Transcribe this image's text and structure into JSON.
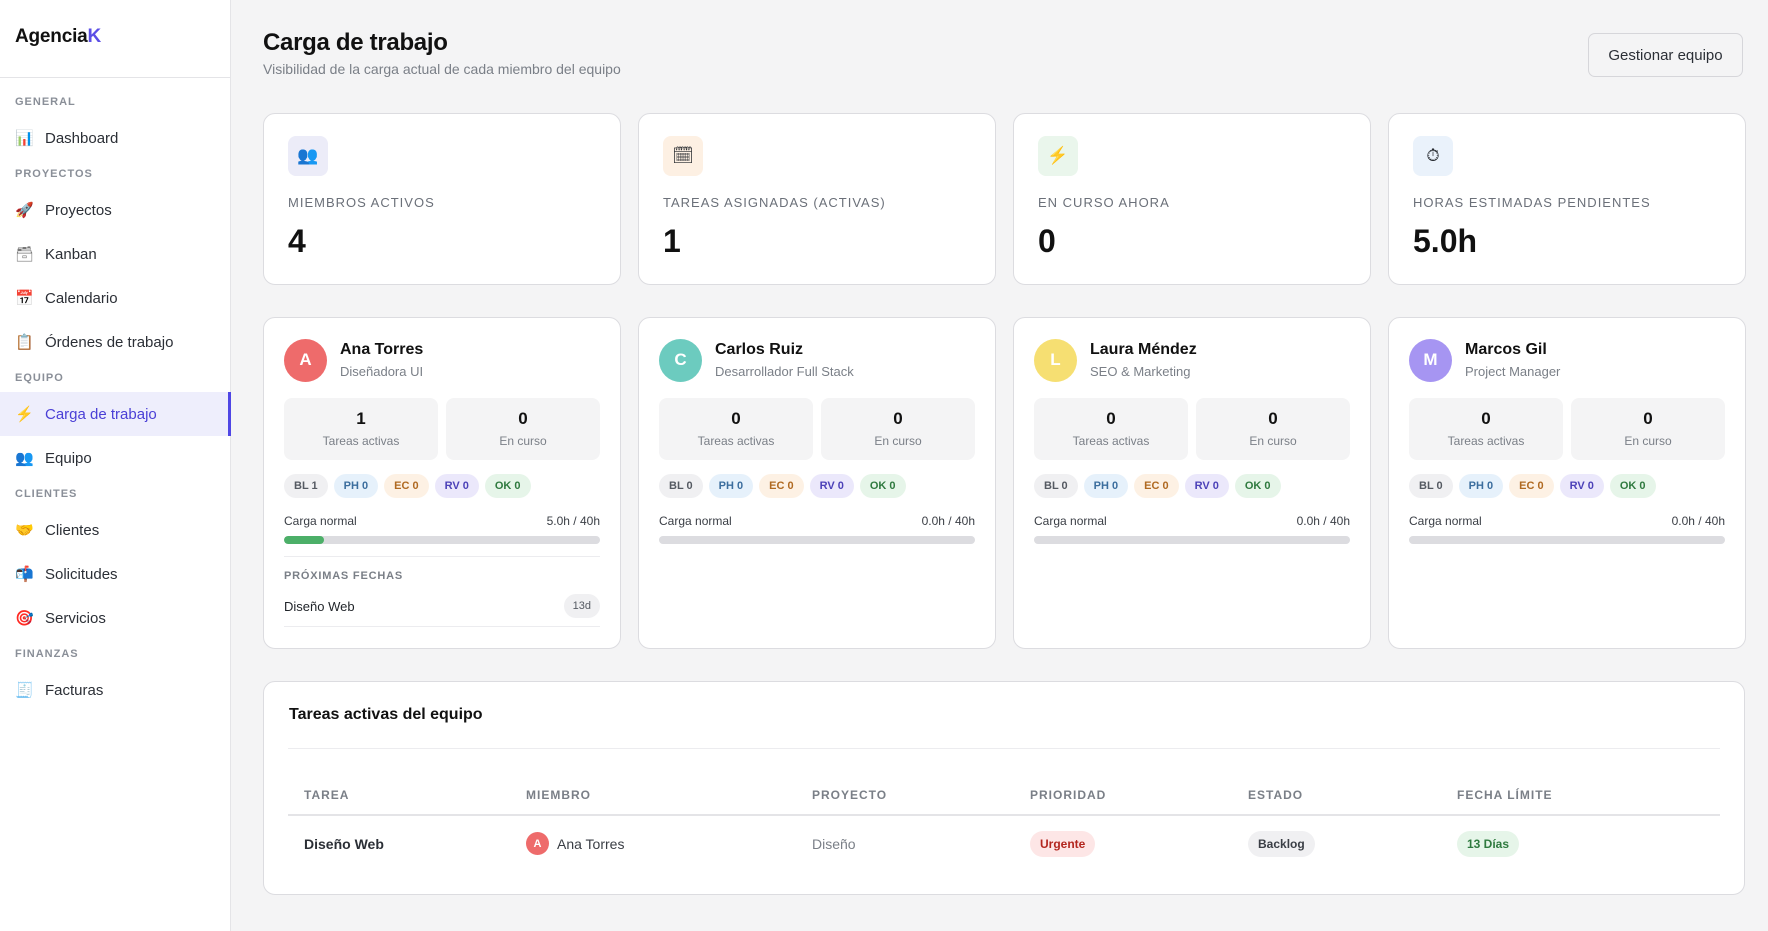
{
  "brand": {
    "name": "Agencia",
    "accent_letter": "K",
    "accent_color": "#5b4ee6"
  },
  "sidebar": {
    "sections": [
      {
        "title": "GENERAL",
        "items": [
          {
            "label": "Dashboard",
            "icon": "bar-chart-icon",
            "glyph": "📊"
          }
        ]
      },
      {
        "title": "PROYECTOS",
        "items": [
          {
            "label": "Proyectos",
            "icon": "rocket-icon",
            "glyph": "🚀"
          },
          {
            "label": "Kanban",
            "icon": "card-box-icon",
            "glyph": "🗃"
          },
          {
            "label": "Calendario",
            "icon": "calendar-icon",
            "glyph": "📅"
          },
          {
            "label": "Órdenes de trabajo",
            "icon": "clipboard-icon",
            "glyph": "📋"
          }
        ]
      },
      {
        "title": "EQUIPO",
        "items": [
          {
            "label": "Carga de trabajo",
            "icon": "lightning-icon",
            "glyph": "⚡",
            "active": true
          },
          {
            "label": "Equipo",
            "icon": "people-icon",
            "glyph": "👥"
          }
        ]
      },
      {
        "title": "CLIENTES",
        "items": [
          {
            "label": "Clientes",
            "icon": "handshake-icon",
            "glyph": "🤝"
          },
          {
            "label": "Solicitudes",
            "icon": "mailbox-icon",
            "glyph": "📬"
          },
          {
            "label": "Servicios",
            "icon": "target-icon",
            "glyph": "🎯"
          }
        ]
      },
      {
        "title": "FINANZAS",
        "items": [
          {
            "label": "Facturas",
            "icon": "receipt-icon",
            "glyph": "🧾"
          }
        ]
      }
    ]
  },
  "header": {
    "title": "Carga de trabajo",
    "subtitle": "Visibilidad de la carga actual de cada miembro del equipo",
    "manage_button": "Gestionar equipo"
  },
  "stats": [
    {
      "label": "MIEMBROS ACTIVOS",
      "value": "4",
      "icon": "people-icon",
      "glyph": "👥",
      "bg": "#ececf8"
    },
    {
      "label": "TAREAS ASIGNADAS (ACTIVAS)",
      "value": "1",
      "icon": "calendar-icon",
      "glyph": "🗓",
      "bg": "#fdf0e3"
    },
    {
      "label": "EN CURSO AHORA",
      "value": "0",
      "icon": "lightning-icon",
      "glyph": "⚡",
      "bg": "#eaf6ec"
    },
    {
      "label": "HORAS ESTIMADAS PENDIENTES",
      "value": "5.0h",
      "icon": "stopwatch-icon",
      "glyph": "⏱",
      "bg": "#eaf2fb"
    }
  ],
  "members": [
    {
      "initial": "A",
      "name": "Ana Torres",
      "role": "Diseñadora UI",
      "color": "#ee6b6b",
      "active_tasks": "1",
      "active_label": "Tareas activas",
      "in_progress": "0",
      "in_progress_label": "En curso",
      "chips": [
        "BL 1",
        "PH 0",
        "EC 0",
        "RV 0",
        "OK 0"
      ],
      "load_label": "Carga normal",
      "load_text": "5.0h / 40h",
      "load_fraction": 0.125,
      "upcoming": {
        "title": "PRÓXIMAS FECHAS",
        "items": [
          {
            "name": "Diseño Web",
            "days": "13d"
          }
        ]
      }
    },
    {
      "initial": "C",
      "name": "Carlos Ruiz",
      "role": "Desarrollador Full Stack",
      "color": "#6ccbbf",
      "active_tasks": "0",
      "active_label": "Tareas activas",
      "in_progress": "0",
      "in_progress_label": "En curso",
      "chips": [
        "BL 0",
        "PH 0",
        "EC 0",
        "RV 0",
        "OK 0"
      ],
      "load_label": "Carga normal",
      "load_text": "0.0h / 40h",
      "load_fraction": 0
    },
    {
      "initial": "L",
      "name": "Laura Méndez",
      "role": "SEO & Marketing",
      "color": "#f6df72",
      "active_tasks": "0",
      "active_label": "Tareas activas",
      "in_progress": "0",
      "in_progress_label": "En curso",
      "chips": [
        "BL 0",
        "PH 0",
        "EC 0",
        "RV 0",
        "OK 0"
      ],
      "load_label": "Carga normal",
      "load_text": "0.0h / 40h",
      "load_fraction": 0
    },
    {
      "initial": "M",
      "name": "Marcos Gil",
      "role": "Project Manager",
      "color": "#a695f2",
      "active_tasks": "0",
      "active_label": "Tareas activas",
      "in_progress": "0",
      "in_progress_label": "En curso",
      "chips": [
        "BL 0",
        "PH 0",
        "EC 0",
        "RV 0",
        "OK 0"
      ],
      "load_label": "Carga normal",
      "load_text": "0.0h / 40h",
      "load_fraction": 0
    }
  ],
  "tasks": {
    "title": "Tareas activas del equipo",
    "columns": [
      "TAREA",
      "MIEMBRO",
      "PROYECTO",
      "PRIORIDAD",
      "ESTADO",
      "FECHA LÍMITE"
    ],
    "rows": [
      {
        "task": "Diseño Web",
        "member_initial": "A",
        "member": "Ana Torres",
        "project": "Diseño",
        "priority": "Urgente",
        "state": "Backlog",
        "deadline": "13 Días"
      }
    ]
  }
}
